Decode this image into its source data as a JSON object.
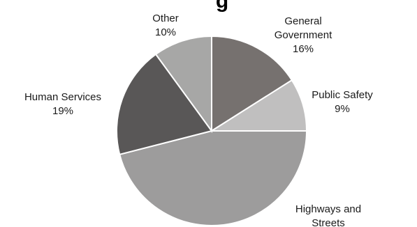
{
  "chart_data": {
    "type": "pie",
    "title": "g",
    "start_angle_deg": 0,
    "direction": "clockwise",
    "slices": [
      {
        "name": "General Government",
        "label_lines": [
          "General",
          "Government"
        ],
        "percent_label": "16%",
        "value": 16,
        "color": "#76716f"
      },
      {
        "name": "Public Safety",
        "label_lines": [
          "Public Safety"
        ],
        "percent_label": "9%",
        "value": 9,
        "color": "#c0bfbf"
      },
      {
        "name": "Highways and Streets",
        "label_lines": [
          "Highways and",
          "Streets"
        ],
        "percent_label": "",
        "value": 46,
        "color": "#9d9c9c"
      },
      {
        "name": "Human Services",
        "label_lines": [
          "Human Services"
        ],
        "percent_label": "19%",
        "value": 19,
        "color": "#595757"
      },
      {
        "name": "Other",
        "label_lines": [
          "Other"
        ],
        "percent_label": "10%",
        "value": 10,
        "color": "#a7a7a6"
      }
    ]
  }
}
